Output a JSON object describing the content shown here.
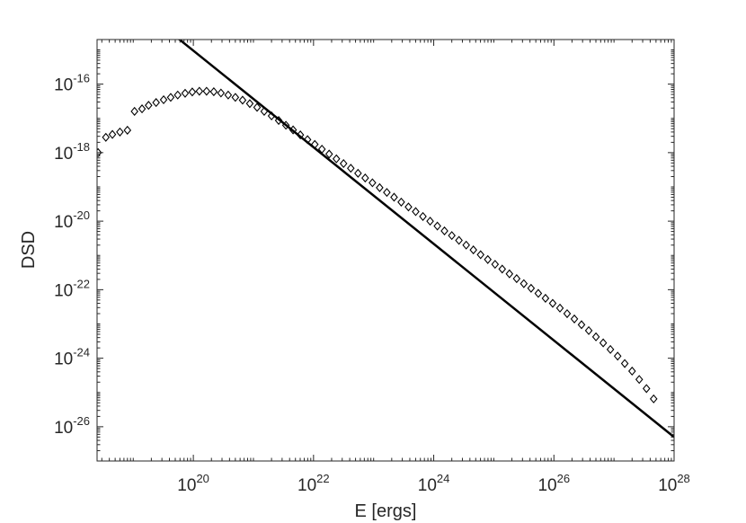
{
  "chart_data": {
    "type": "scatter",
    "title": "",
    "xlabel": "E [ergs]",
    "ylabel": "DSD",
    "x_scale": "log",
    "y_scale": "log",
    "xlim": [
      2.5e+18,
      1e+28
    ],
    "ylim": [
      1e-27,
      2e-15
    ],
    "grid": false,
    "legend": null,
    "x_ticks": [
      {
        "base": "10",
        "exp": "20",
        "value": 1e+20
      },
      {
        "base": "10",
        "exp": "22",
        "value": 1e+22
      },
      {
        "base": "10",
        "exp": "24",
        "value": 1e+24
      },
      {
        "base": "10",
        "exp": "26",
        "value": 1e+26
      },
      {
        "base": "10",
        "exp": "28",
        "value": 1e+28
      }
    ],
    "y_ticks": [
      {
        "base": "10",
        "exp": "-16",
        "value": 1e-16
      },
      {
        "base": "10",
        "exp": "-18",
        "value": 1e-18
      },
      {
        "base": "10",
        "exp": "-20",
        "value": 1e-20
      },
      {
        "base": "10",
        "exp": "-22",
        "value": 1e-22
      },
      {
        "base": "10",
        "exp": "-24",
        "value": 1e-24
      },
      {
        "base": "10",
        "exp": "-26",
        "value": 1e-26
      }
    ],
    "series": [
      {
        "type": "scatter",
        "marker": "diamond",
        "color": "#000000",
        "x": [
          2.6e+18,
          3.5e+18,
          4.5e+18,
          6e+18,
          8e+18,
          1.05e+19,
          1.4e+19,
          1.8e+19,
          2.4e+19,
          3.2e+19,
          4.2e+19,
          5.5e+19,
          7.3e+19,
          9.6e+19,
          1.26e+20,
          1.66e+20,
          2.19e+20,
          2.88e+20,
          3.8e+20,
          5e+20,
          6.6e+20,
          8.7e+20,
          1.15e+21,
          1.51e+21,
          2e+21,
          2.63e+21,
          3.47e+21,
          4.57e+21,
          6.03e+21,
          7.94e+21,
          1.05e+22,
          1.38e+22,
          1.82e+22,
          2.4e+22,
          3.16e+22,
          4.17e+22,
          5.5e+22,
          7.24e+22,
          9.55e+22,
          1.26e+23,
          1.66e+23,
          2.19e+23,
          2.88e+23,
          3.8e+23,
          5.01e+23,
          6.61e+23,
          8.71e+23,
          1.15e+24,
          1.51e+24,
          2e+24,
          2.63e+24,
          3.47e+24,
          4.57e+24,
          6.03e+24,
          7.94e+24,
          1.05e+25,
          1.38e+25,
          1.82e+25,
          2.4e+25,
          3.16e+25,
          4.17e+25,
          5.5e+25,
          7.24e+25,
          9.55e+25,
          1.26e+26,
          1.66e+26,
          2.19e+26,
          2.88e+26,
          3.8e+26,
          5.01e+26,
          6.61e+26,
          8.71e+26,
          1.15e+27,
          1.51e+27,
          2e+27,
          2.63e+27,
          3.47e+27,
          4.57e+27
        ],
        "y": [
          1e-18,
          2.8e-18,
          3.4e-18,
          4e-18,
          4.5e-18,
          1.6e-17,
          1.9e-17,
          2.4e-17,
          2.9e-17,
          3.5e-17,
          4.1e-17,
          4.8e-17,
          5.4e-17,
          5.9e-17,
          6.2e-17,
          6.2e-17,
          6e-17,
          5.5e-17,
          4.8e-17,
          4.1e-17,
          3.4e-17,
          2.7e-17,
          2.1e-17,
          1.6e-17,
          1.18e-17,
          8.7e-18,
          6.3e-18,
          4.6e-18,
          3.3e-18,
          2.4e-18,
          1.74e-18,
          1.26e-18,
          9.1e-19,
          6.6e-19,
          4.8e-19,
          3.5e-19,
          2.5e-19,
          1.82e-19,
          1.32e-19,
          9.5e-20,
          6.9e-20,
          5e-20,
          3.6e-20,
          2.6e-20,
          1.9e-20,
          1.37e-20,
          1e-20,
          7.2e-21,
          5.2e-21,
          3.8e-21,
          2.75e-21,
          2e-21,
          1.45e-21,
          1.05e-21,
          7.6e-22,
          5.5e-22,
          4e-22,
          2.9e-22,
          2.1e-22,
          1.5e-22,
          1.1e-22,
          7.8e-23,
          5.6e-23,
          4e-23,
          2.9e-23,
          2e-23,
          1.4e-23,
          9.5e-24,
          6.4e-24,
          4.2e-24,
          2.8e-24,
          1.8e-24,
          1.15e-24,
          7e-25,
          4.2e-25,
          2.4e-25,
          1.3e-25,
          6.5e-26
        ]
      },
      {
        "type": "line",
        "color": "#000000",
        "x": [
          5.5e+19,
          1e+28
        ],
        "y": [
          2.2e-15,
          5e-27
        ]
      }
    ]
  }
}
